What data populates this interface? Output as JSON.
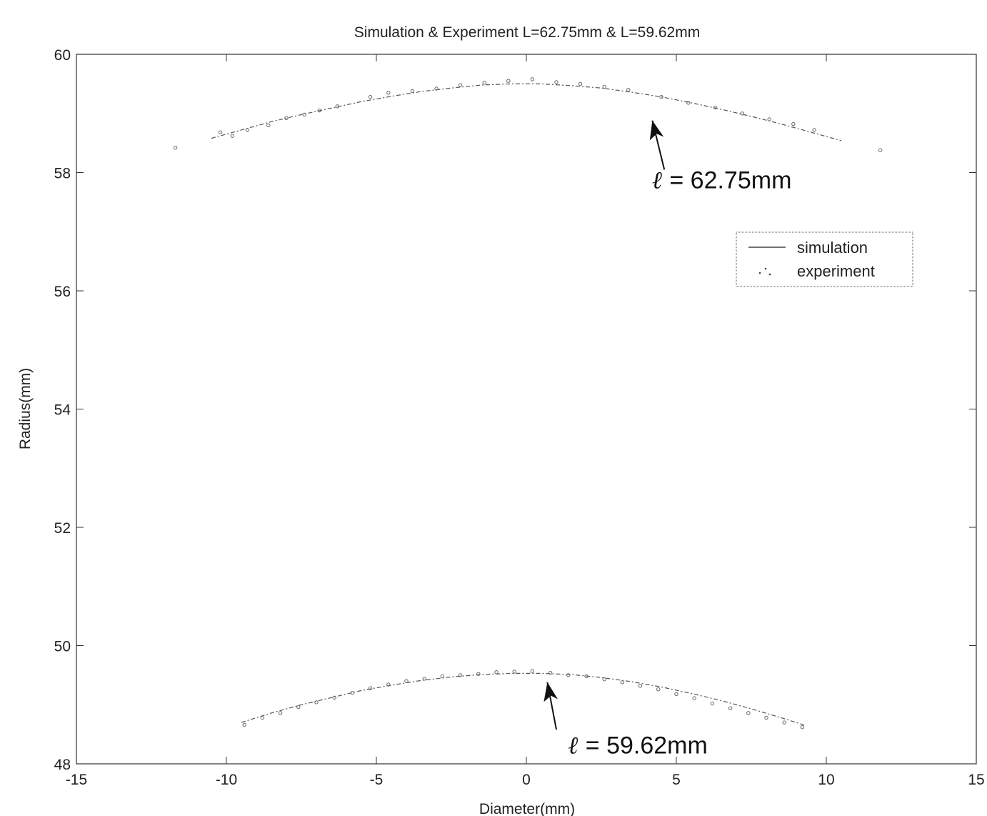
{
  "chart_data": {
    "type": "line",
    "title": "Simulation & Experiment  L=62.75mm & L=59.62mm",
    "xlabel": "Diameter(mm)",
    "ylabel": "Radius(mm)",
    "xlim": [
      -15,
      15
    ],
    "ylim": [
      48,
      60
    ],
    "xticks": [
      -15,
      -10,
      -5,
      0,
      5,
      10,
      15
    ],
    "yticks": [
      48,
      50,
      52,
      54,
      56,
      58,
      60
    ],
    "xtick_labels": [
      "-15",
      "-10",
      "-5",
      "0",
      "5",
      "10",
      "15"
    ],
    "ytick_labels": [
      "48",
      "50",
      "52",
      "54",
      "56",
      "58",
      "60"
    ],
    "grid": false,
    "legend": {
      "position": "upper-right",
      "entries": [
        {
          "label": "simulation",
          "style": "line"
        },
        {
          "label": "experiment",
          "style": "dots"
        }
      ]
    },
    "series": [
      {
        "name": "simulation",
        "curve": "L=62.75mm",
        "x": [
          -10.5,
          -9.5,
          -8.5,
          -7.5,
          -6.5,
          -5.5,
          -4.5,
          -3.5,
          -2.5,
          -1.5,
          -0.5,
          0.5,
          1.5,
          2.5,
          3.5,
          4.5,
          5.5,
          6.5,
          7.5,
          8.5,
          9.5,
          10.5
        ],
        "y": [
          58.58,
          58.72,
          58.86,
          58.98,
          59.09,
          59.2,
          59.29,
          59.37,
          59.43,
          59.48,
          59.5,
          59.5,
          59.47,
          59.43,
          59.36,
          59.28,
          59.18,
          59.07,
          58.95,
          58.82,
          58.68,
          58.54
        ]
      },
      {
        "name": "experiment",
        "curve": "L=62.75mm",
        "x": [
          -11.7,
          -10.2,
          -9.8,
          -9.3,
          -8.6,
          -8.0,
          -7.4,
          -6.9,
          -6.3,
          -5.2,
          -4.6,
          -3.8,
          -3.0,
          -2.2,
          -1.4,
          -0.6,
          0.2,
          1.0,
          1.8,
          2.6,
          3.4,
          4.5,
          5.4,
          6.3,
          7.2,
          8.1,
          8.9,
          9.6,
          11.8
        ],
        "y": [
          58.42,
          58.68,
          58.62,
          58.72,
          58.8,
          58.92,
          58.98,
          59.05,
          59.12,
          59.28,
          59.35,
          59.38,
          59.42,
          59.48,
          59.52,
          59.55,
          59.58,
          59.53,
          59.5,
          59.45,
          59.4,
          59.28,
          59.18,
          59.1,
          59.0,
          58.9,
          58.82,
          58.72,
          58.38
        ]
      },
      {
        "name": "simulation",
        "curve": "L=59.62mm",
        "x": [
          -9.5,
          -8.5,
          -7.5,
          -6.5,
          -5.5,
          -4.5,
          -3.5,
          -2.5,
          -1.5,
          -0.5,
          0.5,
          1.5,
          2.5,
          3.5,
          4.5,
          5.5,
          6.5,
          7.5,
          8.5,
          9.3
        ],
        "y": [
          48.7,
          48.86,
          49.0,
          49.12,
          49.24,
          49.33,
          49.41,
          49.47,
          49.51,
          49.53,
          49.53,
          49.51,
          49.46,
          49.39,
          49.3,
          49.19,
          49.07,
          48.93,
          48.78,
          48.65
        ]
      },
      {
        "name": "experiment",
        "curve": "L=59.62mm",
        "x": [
          -9.4,
          -8.8,
          -8.2,
          -7.6,
          -7.0,
          -6.4,
          -5.8,
          -5.2,
          -4.6,
          -4.0,
          -3.4,
          -2.8,
          -2.2,
          -1.6,
          -1.0,
          -0.4,
          0.2,
          0.8,
          1.4,
          2.0,
          2.6,
          3.2,
          3.8,
          4.4,
          5.0,
          5.6,
          6.2,
          6.8,
          7.4,
          8.0,
          8.6,
          9.2
        ],
        "y": [
          48.66,
          48.78,
          48.86,
          48.96,
          49.04,
          49.12,
          49.2,
          49.28,
          49.34,
          49.4,
          49.44,
          49.48,
          49.5,
          49.52,
          49.55,
          49.56,
          49.57,
          49.54,
          49.5,
          49.48,
          49.43,
          49.38,
          49.32,
          49.26,
          49.18,
          49.11,
          49.02,
          48.94,
          48.86,
          48.78,
          48.7,
          48.62
        ]
      }
    ],
    "annotations": [
      {
        "symbol": "ℓ",
        "text": " = 62.75mm",
        "arrow_tail": [
          4.6,
          58.05
        ],
        "arrow_head": [
          4.2,
          58.88
        ],
        "text_at": [
          4.2,
          57.88
        ]
      },
      {
        "symbol": "ℓ",
        "text": " = 59.62mm",
        "arrow_tail": [
          1.0,
          48.58
        ],
        "arrow_head": [
          0.7,
          49.38
        ],
        "text_at": [
          1.4,
          48.32
        ]
      }
    ]
  }
}
